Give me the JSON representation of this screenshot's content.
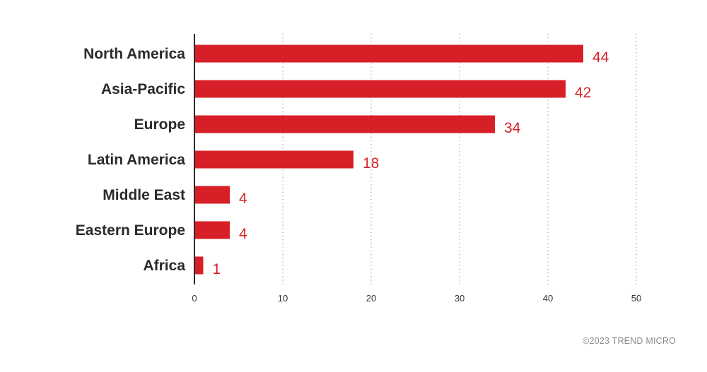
{
  "chart_data": {
    "type": "bar",
    "orientation": "horizontal",
    "categories": [
      "North America",
      "Asia-Pacific",
      "Europe",
      "Latin America",
      "Middle East",
      "Eastern Europe",
      "Africa"
    ],
    "values": [
      44,
      42,
      34,
      18,
      4,
      4,
      1
    ],
    "data_labels": [
      "44",
      "42",
      "34",
      "18",
      "4",
      "4",
      "1"
    ],
    "xlim": [
      0,
      50
    ],
    "xticks": [
      0,
      10,
      20,
      30,
      40,
      50
    ],
    "grid": "vertical dotted",
    "bar_color": "#d71f27",
    "label_color": "#d71f27",
    "title": "",
    "xlabel": "",
    "ylabel": ""
  },
  "footer": {
    "copyright": "©2023 TREND MICRO"
  }
}
